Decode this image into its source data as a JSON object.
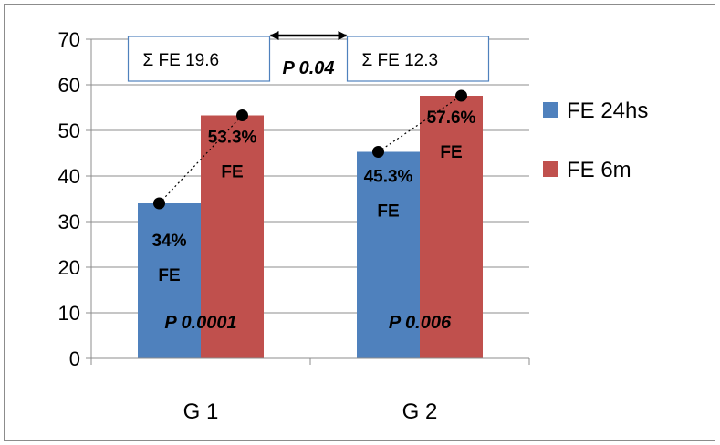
{
  "chart_data": {
    "type": "bar",
    "categories": [
      "G 1",
      "G 2"
    ],
    "series": [
      {
        "name": "FE 24hs",
        "color": "#4f81bd",
        "values": [
          34,
          45.3
        ]
      },
      {
        "name": "FE 6m",
        "color": "#c0504d",
        "values": [
          53.3,
          57.6
        ]
      }
    ],
    "ylim": [
      0,
      70
    ],
    "yticks": [
      0,
      10,
      20,
      30,
      40,
      50,
      60,
      70
    ],
    "grid": true,
    "legend": "right",
    "bar_labels": {
      "G 1": {
        "FE 24hs": [
          "34%",
          "FE"
        ],
        "FE 6m": [
          "53.3%",
          "FE"
        ],
        "p_value": "P 0.0001"
      },
      "G 2": {
        "FE 24hs": [
          "45.3%",
          "FE"
        ],
        "FE 6m": [
          "57.6%",
          "FE"
        ],
        "p_value": "P 0.006"
      }
    },
    "summary_boxes": {
      "G 1": "Σ FE 19.6",
      "G 2": "Σ FE 12.3"
    },
    "between_groups_p": "P 0.04"
  }
}
